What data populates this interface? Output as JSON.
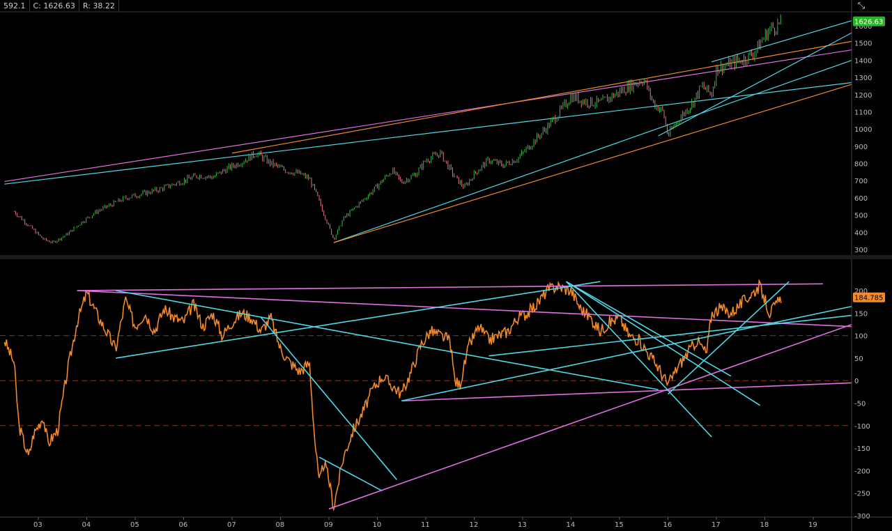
{
  "header": {
    "prev": "592.1",
    "close": "C: 1626.63",
    "range": "R: 38.22"
  },
  "icons": {
    "settings": "expand-arrows-icon"
  },
  "colors": {
    "bg": "#000000",
    "up": "#39b54a",
    "down": "#e6738a",
    "orange": "#f2892a",
    "cyan": "#4fd8e6",
    "magenta": "#e070e0",
    "dash": "#8a3a1a",
    "badge_price": "#27b427",
    "badge_osc": "#f2892a"
  },
  "chart_data": [
    {
      "type": "candlestick",
      "title": "",
      "ylim": [
        280,
        1660
      ],
      "y_ticks": [
        300,
        400,
        500,
        600,
        700,
        800,
        900,
        1000,
        1100,
        1200,
        1300,
        1400,
        1500,
        1600
      ],
      "last_price": "1626.63",
      "price_path": [
        [
          2002.5,
          520
        ],
        [
          2002.8,
          440
        ],
        [
          2003.1,
          360
        ],
        [
          2003.3,
          340
        ],
        [
          2003.6,
          390
        ],
        [
          2003.9,
          460
        ],
        [
          2004.2,
          520
        ],
        [
          2004.5,
          560
        ],
        [
          2004.8,
          600
        ],
        [
          2005.1,
          620
        ],
        [
          2005.5,
          650
        ],
        [
          2005.9,
          690
        ],
        [
          2006.3,
          730
        ],
        [
          2006.6,
          720
        ],
        [
          2006.9,
          770
        ],
        [
          2007.2,
          810
        ],
        [
          2007.5,
          860
        ],
        [
          2007.8,
          800
        ],
        [
          2008.1,
          760
        ],
        [
          2008.4,
          740
        ],
        [
          2008.6,
          710
        ],
        [
          2008.8,
          580
        ],
        [
          2009.0,
          430
        ],
        [
          2009.1,
          360
        ],
        [
          2009.3,
          480
        ],
        [
          2009.6,
          560
        ],
        [
          2009.9,
          640
        ],
        [
          2010.1,
          700
        ],
        [
          2010.3,
          760
        ],
        [
          2010.5,
          690
        ],
        [
          2010.8,
          740
        ],
        [
          2011.0,
          820
        ],
        [
          2011.3,
          860
        ],
        [
          2011.6,
          720
        ],
        [
          2011.8,
          660
        ],
        [
          2012.0,
          740
        ],
        [
          2012.3,
          820
        ],
        [
          2012.6,
          790
        ],
        [
          2012.9,
          830
        ],
        [
          2013.2,
          920
        ],
        [
          2013.5,
          1010
        ],
        [
          2013.8,
          1110
        ],
        [
          2014.0,
          1190
        ],
        [
          2014.3,
          1160
        ],
        [
          2014.6,
          1150
        ],
        [
          2014.9,
          1200
        ],
        [
          2015.2,
          1250
        ],
        [
          2015.5,
          1290
        ],
        [
          2015.7,
          1150
        ],
        [
          2015.9,
          1100
        ],
        [
          2016.0,
          960
        ],
        [
          2016.2,
          1050
        ],
        [
          2016.5,
          1150
        ],
        [
          2016.7,
          1250
        ],
        [
          2016.9,
          1200
        ],
        [
          2017.0,
          1350
        ],
        [
          2017.3,
          1380
        ],
        [
          2017.6,
          1410
        ],
        [
          2017.8,
          1450
        ],
        [
          2017.95,
          1520
        ],
        [
          2018.1,
          1580
        ],
        [
          2018.25,
          1600
        ],
        [
          2018.35,
          1626
        ]
      ],
      "trendlines": [
        {
          "color": "magenta",
          "from": [
            2002.3,
            695
          ],
          "to": [
            2019.8,
            1460
          ]
        },
        {
          "color": "cyan",
          "from": [
            2002.3,
            680
          ],
          "to": [
            2019.8,
            1270
          ]
        },
        {
          "color": "orange",
          "from": [
            2007.0,
            860
          ],
          "to": [
            2019.8,
            1510
          ]
        },
        {
          "color": "cyan",
          "from": [
            2009.1,
            340
          ],
          "to": [
            2019.8,
            1400
          ]
        },
        {
          "color": "orange",
          "from": [
            2009.1,
            340
          ],
          "to": [
            2019.8,
            1260
          ]
        },
        {
          "color": "cyan",
          "from": [
            2015.8,
            960
          ],
          "to": [
            2019.8,
            1560
          ]
        },
        {
          "color": "cyan",
          "from": [
            2016.9,
            1390
          ],
          "to": [
            2019.8,
            1630
          ]
        }
      ]
    },
    {
      "type": "line",
      "title": "",
      "ylim": [
        -300,
        250
      ],
      "y_ticks": [
        200,
        150,
        100,
        50,
        0,
        -50,
        -100,
        -150,
        -200,
        -250,
        -300
      ],
      "x_ticks": [
        "03",
        "04",
        "05",
        "06",
        "07",
        "08",
        "09",
        "10",
        "11",
        "12",
        "13",
        "14",
        "15",
        "16",
        "17",
        "18",
        "19"
      ],
      "x_tick_years": [
        2003,
        2004,
        2005,
        2006,
        2007,
        2008,
        2009,
        2010,
        2011,
        2012,
        2013,
        2014,
        2015,
        2016,
        2017,
        2018,
        2019
      ],
      "dashed_levels": [
        100,
        0,
        -100
      ],
      "last_value": "184.785",
      "series": [
        {
          "values": [
            [
              2002.3,
              90
            ],
            [
              2002.5,
              40
            ],
            [
              2002.6,
              -100
            ],
            [
              2002.8,
              -170
            ],
            [
              2002.9,
              -120
            ],
            [
              2003.1,
              -80
            ],
            [
              2003.2,
              -140
            ],
            [
              2003.4,
              -110
            ],
            [
              2003.6,
              20
            ],
            [
              2003.8,
              130
            ],
            [
              2004.0,
              195
            ],
            [
              2004.2,
              150
            ],
            [
              2004.4,
              110
            ],
            [
              2004.6,
              70
            ],
            [
              2004.8,
              180
            ],
            [
              2005.0,
              120
            ],
            [
              2005.2,
              150
            ],
            [
              2005.4,
              110
            ],
            [
              2005.6,
              160
            ],
            [
              2005.8,
              140
            ],
            [
              2006.0,
              130
            ],
            [
              2006.2,
              170
            ],
            [
              2006.4,
              120
            ],
            [
              2006.6,
              150
            ],
            [
              2006.8,
              100
            ],
            [
              2007.0,
              130
            ],
            [
              2007.2,
              150
            ],
            [
              2007.4,
              140
            ],
            [
              2007.6,
              110
            ],
            [
              2007.8,
              140
            ],
            [
              2008.0,
              70
            ],
            [
              2008.2,
              40
            ],
            [
              2008.4,
              20
            ],
            [
              2008.6,
              40
            ],
            [
              2008.7,
              -120
            ],
            [
              2008.8,
              -230
            ],
            [
              2008.9,
              -180
            ],
            [
              2009.0,
              -220
            ],
            [
              2009.1,
              -280
            ],
            [
              2009.3,
              -170
            ],
            [
              2009.5,
              -110
            ],
            [
              2009.7,
              -70
            ],
            [
              2009.9,
              -20
            ],
            [
              2010.1,
              10
            ],
            [
              2010.3,
              -10
            ],
            [
              2010.5,
              -30
            ],
            [
              2010.7,
              20
            ],
            [
              2010.9,
              80
            ],
            [
              2011.1,
              110
            ],
            [
              2011.3,
              100
            ],
            [
              2011.5,
              90
            ],
            [
              2011.6,
              0
            ],
            [
              2011.7,
              -10
            ],
            [
              2011.9,
              80
            ],
            [
              2012.1,
              120
            ],
            [
              2012.3,
              90
            ],
            [
              2012.5,
              100
            ],
            [
              2012.7,
              110
            ],
            [
              2012.9,
              140
            ],
            [
              2013.1,
              150
            ],
            [
              2013.3,
              170
            ],
            [
              2013.5,
              200
            ],
            [
              2013.7,
              210
            ],
            [
              2014.0,
              200
            ],
            [
              2014.2,
              160
            ],
            [
              2014.4,
              140
            ],
            [
              2014.6,
              110
            ],
            [
              2014.8,
              130
            ],
            [
              2015.0,
              140
            ],
            [
              2015.2,
              100
            ],
            [
              2015.4,
              90
            ],
            [
              2015.6,
              60
            ],
            [
              2015.8,
              30
            ],
            [
              2016.0,
              -10
            ],
            [
              2016.2,
              30
            ],
            [
              2016.4,
              60
            ],
            [
              2016.6,
              90
            ],
            [
              2016.8,
              60
            ],
            [
              2016.9,
              150
            ],
            [
              2017.1,
              160
            ],
            [
              2017.3,
              150
            ],
            [
              2017.5,
              170
            ],
            [
              2017.7,
              190
            ],
            [
              2017.9,
              210
            ],
            [
              2018.0,
              180
            ],
            [
              2018.1,
              150
            ],
            [
              2018.25,
              170
            ],
            [
              2018.35,
              185
            ]
          ]
        }
      ],
      "trendlines": [
        {
          "color": "magenta",
          "from": [
            2003.8,
            200
          ],
          "to": [
            2019.2,
            215
          ]
        },
        {
          "color": "magenta",
          "from": [
            2003.8,
            200
          ],
          "to": [
            2019.8,
            120
          ]
        },
        {
          "color": "cyan",
          "from": [
            2004.6,
            50
          ],
          "to": [
            2014.6,
            220
          ]
        },
        {
          "color": "cyan",
          "from": [
            2004.6,
            200
          ],
          "to": [
            2015.8,
            -20
          ]
        },
        {
          "color": "cyan",
          "from": [
            2007.6,
            140
          ],
          "to": [
            2010.4,
            -220
          ]
        },
        {
          "color": "cyan",
          "from": [
            2008.8,
            -170
          ],
          "to": [
            2010.1,
            -245
          ]
        },
        {
          "color": "magenta",
          "from": [
            2009.0,
            -285
          ],
          "to": [
            2019.8,
            125
          ]
        },
        {
          "color": "magenta",
          "from": [
            2010.5,
            -45
          ],
          "to": [
            2019.8,
            -5
          ]
        },
        {
          "color": "cyan",
          "from": [
            2010.5,
            -45
          ],
          "to": [
            2019.8,
            165
          ]
        },
        {
          "color": "cyan",
          "from": [
            2012.3,
            55
          ],
          "to": [
            2019.8,
            145
          ]
        },
        {
          "color": "cyan",
          "from": [
            2013.9,
            220
          ],
          "to": [
            2016.9,
            -125
          ]
        },
        {
          "color": "cyan",
          "from": [
            2013.9,
            220
          ],
          "to": [
            2017.9,
            -55
          ]
        },
        {
          "color": "cyan",
          "from": [
            2013.9,
            220
          ],
          "to": [
            2017.3,
            10
          ]
        },
        {
          "color": "cyan",
          "from": [
            2016.0,
            -30
          ],
          "to": [
            2018.5,
            220
          ]
        }
      ]
    }
  ]
}
